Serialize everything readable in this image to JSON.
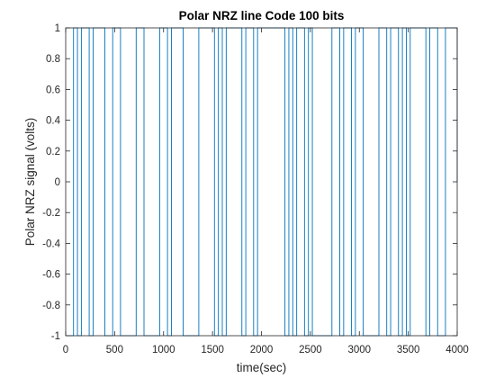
{
  "chart_data": {
    "type": "line",
    "title": "Polar NRZ line Code 100 bits",
    "xlabel": "time(sec)",
    "ylabel": "Polar NRZ signal (volts)",
    "xlim": [
      0,
      4000
    ],
    "ylim": [
      -1,
      1
    ],
    "xticks": [
      0,
      500,
      1000,
      1500,
      2000,
      2500,
      3000,
      3500,
      4000
    ],
    "yticks": [
      1,
      0.8,
      0.6,
      0.4,
      0.2,
      0,
      -0.2,
      -0.4,
      -0.6,
      -0.8,
      -1
    ],
    "xtick_labels": [
      "0",
      "500",
      "1000",
      "1500",
      "2000",
      "2500",
      "3000",
      "3500",
      "4000"
    ],
    "ytick_labels": [
      "1",
      "0.8",
      "0.6",
      "0.4",
      "0.2",
      "0",
      "-0.2",
      "-0.4",
      "-0.6",
      "-0.8",
      "-1"
    ],
    "grid": false,
    "box": true,
    "line_color": "#0072BD",
    "axis_color": "#262626",
    "series": [
      {
        "name": "",
        "step": true,
        "bit_duration": 40,
        "levels": [
          -1,
          -1,
          1,
          -1,
          1,
          1,
          -1,
          1,
          1,
          1,
          -1,
          -1,
          1,
          1,
          -1,
          -1,
          -1,
          -1,
          1,
          1,
          -1,
          -1,
          -1,
          -1,
          1,
          1,
          -1,
          1,
          1,
          1,
          -1,
          -1,
          -1,
          -1,
          1,
          1,
          1,
          1,
          -1,
          1,
          -1,
          1,
          1,
          1,
          1,
          -1,
          1,
          1,
          -1,
          1,
          1,
          1,
          1,
          1,
          1,
          1,
          -1,
          1,
          -1,
          1,
          1,
          -1,
          1,
          -1,
          -1,
          -1,
          -1,
          -1,
          1,
          1,
          -1,
          1,
          1,
          -1,
          1,
          1,
          -1,
          -1,
          -1,
          -1,
          1,
          1,
          -1,
          1,
          1,
          -1,
          1,
          -1,
          1,
          1,
          1,
          1,
          -1,
          1,
          1,
          -1,
          -1,
          1,
          1,
          1
        ]
      }
    ]
  }
}
